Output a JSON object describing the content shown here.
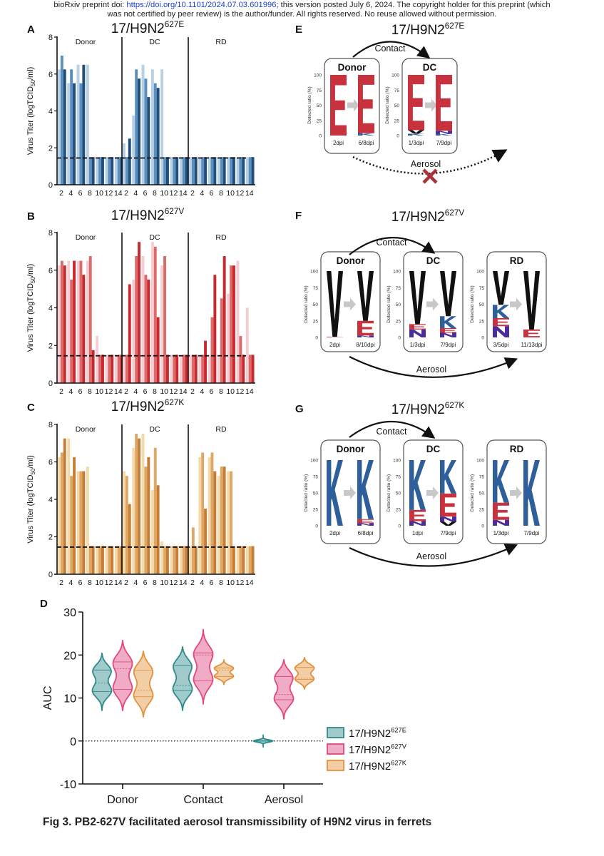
{
  "watermark": {
    "line1_prefix": "bioRxiv preprint doi: ",
    "line1_link": "https://doi.org/10.1101/2024.07.03.601996",
    "line1_suffix": "; this version posted July 6, 2024. The copyright holder for this preprint (which",
    "line2": "was not certified by peer review) is the author/funder. All rights reserved. No reuse allowed without permission."
  },
  "caption": "Fig 3. PB2-627V facilitated aerosol transmissibility of H9N2 virus in ferrets",
  "colors": {
    "E": [
      "#b7d0e6",
      "#5b8fbe",
      "#1f4e7d"
    ],
    "V": [
      "#f6cdd3",
      "#dc6a68",
      "#c8282e"
    ],
    "K": [
      "#f5d9a8",
      "#dfa766",
      "#c87d35"
    ],
    "logo_E": "#c8323e",
    "logo_K": "#2f5f9a",
    "logo_V": "#111111",
    "logo_N": "#4a2c9c",
    "violin_E": "#2f8b8a",
    "violin_V": "#e0487f",
    "violin_K": "#e3923c"
  },
  "chart_data": [
    {
      "panel": "A",
      "type": "bar",
      "title": "17/H9N2",
      "title_sup": "627E",
      "variant": "E",
      "ylabel": "Virus Titer (logTCID",
      "ylabel_sub": "50",
      "ylabel_suffix": "/ml)",
      "ylim": [
        0,
        8
      ],
      "yticks": [
        "0",
        "2",
        "4",
        "6",
        "8"
      ],
      "detection_limit": 1.45,
      "days": [
        "2",
        "4",
        "6",
        "8",
        "10",
        "12",
        "14"
      ],
      "groups": [
        {
          "name": "Donor",
          "ferrets": [
            [
              6.25,
              5.5,
              6.5,
              6.5,
              1.5,
              1.5,
              1.5
            ],
            [
              7.0,
              6.25,
              5.5,
              1.5,
              1.5,
              1.5,
              1.5
            ],
            [
              6.25,
              5.5,
              6.5,
              1.5,
              1.5,
              1.5,
              1.5
            ]
          ]
        },
        {
          "name": "DC",
          "ferrets": [
            [
              2.25,
              3.75,
              6.5,
              6.25,
              6.25,
              1.5,
              1.5
            ],
            [
              1.5,
              6.25,
              5.75,
              5.5,
              1.5,
              1.5,
              1.5
            ],
            [
              2.5,
              5.75,
              4.75,
              5.25,
              1.5,
              1.5,
              1.5
            ]
          ]
        },
        {
          "name": "RD",
          "ferrets": [
            [
              1.5,
              1.5,
              1.5,
              1.5,
              1.5,
              1.5,
              1.5
            ],
            [
              1.5,
              1.5,
              1.5,
              1.5,
              1.5,
              1.5,
              1.5
            ],
            [
              1.5,
              1.5,
              1.5,
              1.5,
              1.5,
              1.5,
              1.5
            ]
          ]
        }
      ]
    },
    {
      "panel": "B",
      "type": "bar",
      "title": "17/H9N2",
      "title_sup": "627V",
      "variant": "V",
      "ylabel": "Virus Titer (logTCID",
      "ylabel_sub": "50",
      "ylabel_suffix": "/ml)",
      "ylim": [
        0,
        8
      ],
      "yticks": [
        "0",
        "2",
        "4",
        "6",
        "8"
      ],
      "detection_limit": 1.45,
      "days": [
        "2",
        "4",
        "6",
        "8",
        "10",
        "12",
        "14"
      ],
      "groups": [
        {
          "name": "Donor",
          "ferrets": [
            [
              6.25,
              6.5,
              6.5,
              6.5,
              2.5,
              1.5,
              1.5
            ],
            [
              6.5,
              5.5,
              6.5,
              6.75,
              1.5,
              1.5,
              1.5
            ],
            [
              6.25,
              6.5,
              5.75,
              1.75,
              1.5,
              1.5,
              1.5
            ]
          ]
        },
        {
          "name": "DC",
          "ferrets": [
            [
              1.5,
              5.5,
              6.75,
              7.5,
              6.25,
              1.5,
              1.5
            ],
            [
              1.5,
              6.75,
              5.75,
              7.25,
              6.75,
              1.5,
              1.5
            ],
            [
              5.25,
              7.5,
              5.5,
              3.5,
              1.5,
              1.5,
              1.5
            ]
          ]
        },
        {
          "name": "RD",
          "ferrets": [
            [
              1.5,
              1.5,
              1.5,
              1.5,
              4.75,
              6.5,
              4.0
            ],
            [
              1.5,
              1.5,
              3.5,
              4.5,
              6.25,
              2.5,
              1.5
            ],
            [
              1.5,
              2.25,
              5.75,
              6.75,
              6.25,
              1.5,
              1.5
            ]
          ]
        }
      ]
    },
    {
      "panel": "C",
      "type": "bar",
      "title": "17/H9N2",
      "title_sup": "627K",
      "variant": "K",
      "ylabel": "Virus Titer (logTCID",
      "ylabel_sub": "50",
      "ylabel_suffix": "/ml)",
      "ylim": [
        0,
        8
      ],
      "yticks": [
        "0",
        "2",
        "4",
        "6",
        "8"
      ],
      "detection_limit": 1.45,
      "days": [
        "2",
        "4",
        "6",
        "8",
        "10",
        "12",
        "14"
      ],
      "groups": [
        {
          "name": "Donor",
          "ferrets": [
            [
              6.25,
              7.25,
              5.5,
              5.75,
              1.5,
              1.5,
              1.5
            ],
            [
              6.5,
              5.25,
              5.5,
              1.5,
              1.5,
              1.5,
              1.5
            ],
            [
              7.25,
              6.25,
              5.5,
              1.5,
              1.5,
              1.5,
              1.5
            ]
          ]
        },
        {
          "name": "DC",
          "ferrets": [
            [
              5.5,
              6.75,
              7.5,
              4.5,
              1.75,
              1.5,
              1.5
            ],
            [
              5.25,
              7.5,
              5.75,
              6.75,
              1.5,
              1.5,
              1.5
            ],
            [
              3.75,
              7.25,
              6.25,
              4.75,
              1.5,
              1.5,
              1.5
            ]
          ]
        },
        {
          "name": "RD",
          "ferrets": [
            [
              1.5,
              6.25,
              6.25,
              5.25,
              5.5,
              1.5,
              1.5
            ],
            [
              2.5,
              6.5,
              6.5,
              5.75,
              5.5,
              1.5,
              1.5
            ],
            [
              1.5,
              3.5,
              5.5,
              5.75,
              1.5,
              1.5,
              1.5
            ]
          ]
        }
      ]
    },
    {
      "panel": "D",
      "type": "violin",
      "ylabel": "AUC",
      "ylim": [
        -10,
        30
      ],
      "yticks": [
        "-10",
        "0",
        "10",
        "20",
        "30"
      ],
      "categories": [
        "Donor",
        "Contact",
        "Aerosol"
      ],
      "reference_line": 0,
      "legend_position": "right",
      "series": [
        {
          "name": "17/H9N2",
          "sup": "627E",
          "variant": "E",
          "stats": [
            {
              "min": 7,
              "q1": 11.5,
              "median": 13.5,
              "q3": 16.5,
              "max": 20.5
            },
            {
              "min": 7,
              "q1": 11.8,
              "median": 13,
              "q3": 17.6,
              "max": 22
            },
            {
              "min": -1.5,
              "q1": 0,
              "median": 0,
              "q3": 0,
              "max": 1.5
            }
          ]
        },
        {
          "name": "17/H9N2",
          "sup": "627V",
          "variant": "V",
          "stats": [
            {
              "min": 7,
              "q1": 12,
              "median": 16.8,
              "q3": 18.4,
              "max": 23.5
            },
            {
              "min": 8.5,
              "q1": 14,
              "median": 20,
              "q3": 20.5,
              "max": 26
            },
            {
              "min": 5,
              "q1": 9.6,
              "median": 10.8,
              "q3": 15,
              "max": 19
            }
          ]
        },
        {
          "name": "17/H9N2",
          "sup": "627K",
          "variant": "K",
          "stats": [
            {
              "min": 5.5,
              "q1": 10.3,
              "median": 11.8,
              "q3": 16.4,
              "max": 21
            },
            {
              "min": 13,
              "q1": 15,
              "median": 16.5,
              "q3": 17,
              "max": 19
            },
            {
              "min": 12,
              "q1": 14.3,
              "median": 14.6,
              "q3": 17.1,
              "max": 19.5
            }
          ]
        }
      ]
    }
  ],
  "logo_panels": [
    {
      "panel": "E",
      "title": "17/H9N2",
      "title_sup": "627E",
      "contact_label": "Contact",
      "aerosol_label": "Aerosol",
      "aerosol_blocked": true,
      "axis_label": "Detected ratio  (%)",
      "axis_ticks": [
        "0",
        "25",
        "50",
        "75",
        "100"
      ],
      "boxes": [
        {
          "name": "Donor",
          "columns": [
            {
              "label": "2dpi",
              "stack": [
                [
                  "E",
                  100
                ]
              ]
            },
            {
              "label": "6/8dpi",
              "stack": [
                [
                  "K",
                  4
                ],
                [
                  "E",
                  96
                ]
              ]
            }
          ]
        },
        {
          "name": "DC",
          "columns": [
            {
              "label": "1/3dpi",
              "stack": [
                [
                  "K",
                  3
                ],
                [
                  "V",
                  6
                ],
                [
                  "E",
                  91
                ]
              ]
            },
            {
              "label": "7/9dpi",
              "stack": [
                [
                  "K",
                  3
                ],
                [
                  "N",
                  5
                ],
                [
                  "E",
                  92
                ]
              ]
            }
          ]
        }
      ]
    },
    {
      "panel": "F",
      "title": "17/H9N2",
      "title_sup": "627V",
      "contact_label": "Contact",
      "aerosol_label": "Aerosol",
      "aerosol_blocked": false,
      "axis_label": "Detected ratio  (%)",
      "axis_ticks": [
        "0",
        "25",
        "50",
        "75",
        "100"
      ],
      "boxes": [
        {
          "name": "Donor",
          "columns": [
            {
              "label": "2dpi",
              "stack": [
                [
                  "E",
                  1
                ],
                [
                  "V",
                  99
                ]
              ]
            },
            {
              "label": "8/10dpi",
              "stack": [
                [
                  "N",
                  3
                ],
                [
                  "E",
                  22
                ],
                [
                  "V",
                  75
                ]
              ]
            }
          ]
        },
        {
          "name": "DC",
          "columns": [
            {
              "label": "1/3dpi",
              "stack": [
                [
                  "N",
                  12
                ],
                [
                  "E",
                  8
                ],
                [
                  "V",
                  80
                ]
              ]
            },
            {
              "label": "7/9dpi",
              "stack": [
                [
                  "N",
                  7
                ],
                [
                  "E",
                  7
                ],
                [
                  "K",
                  18
                ],
                [
                  "V",
                  68
                ]
              ]
            }
          ]
        },
        {
          "name": "RD",
          "columns": [
            {
              "label": "3/5dpi",
              "stack": [
                [
                  "N",
                  17
                ],
                [
                  "E",
                  12
                ],
                [
                  "K",
                  20
                ],
                [
                  "V",
                  51
                ]
              ]
            },
            {
              "label": "11/13dpi",
              "stack": [
                [
                  "E",
                  12
                ],
                [
                  "V",
                  88
                ]
              ]
            }
          ]
        }
      ]
    },
    {
      "panel": "G",
      "title": "17/H9N2",
      "title_sup": "627K",
      "contact_label": "Contact",
      "aerosol_label": "Aerosol",
      "aerosol_blocked": false,
      "axis_label": "Detected ratio  (%)",
      "axis_ticks": [
        "0",
        "25",
        "50",
        "75",
        "100"
      ],
      "boxes": [
        {
          "name": "Donor",
          "columns": [
            {
              "label": "2dpi",
              "stack": [
                [
                  "K",
                  100
                ]
              ]
            },
            {
              "label": "6/8dpi",
              "stack": [
                [
                  "N",
                  4
                ],
                [
                  "E",
                  6
                ],
                [
                  "K",
                  90
                ]
              ]
            }
          ]
        },
        {
          "name": "DC",
          "columns": [
            {
              "label": "1dpi",
              "stack": [
                [
                  "N",
                  7
                ],
                [
                  "E",
                  17
                ],
                [
                  "K",
                  76
                ]
              ]
            },
            {
              "label": "7/9dpi",
              "stack": [
                [
                  "V",
                  6
                ],
                [
                  "N",
                  8
                ],
                [
                  "E",
                  35
                ],
                [
                  "K",
                  51
                ]
              ]
            }
          ]
        },
        {
          "name": "RD",
          "columns": [
            {
              "label": "1/3dpi",
              "stack": [
                [
                  "N",
                  9
                ],
                [
                  "E",
                  26
                ],
                [
                  "K",
                  65
                ]
              ]
            },
            {
              "label": "7/9dpi",
              "stack": [
                [
                  "K",
                  100
                ]
              ]
            }
          ]
        }
      ]
    }
  ]
}
